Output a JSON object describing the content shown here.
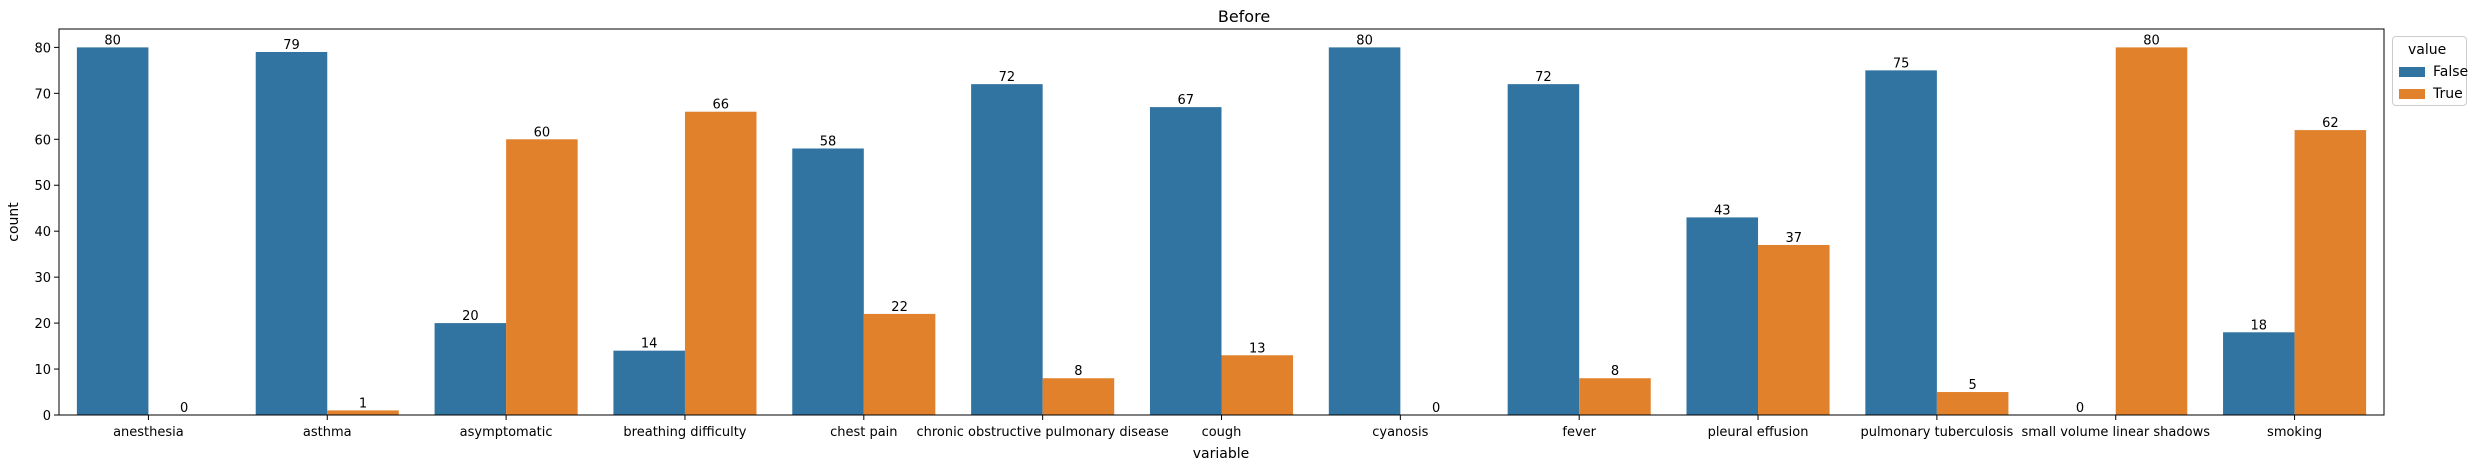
{
  "chart_data": {
    "type": "bar",
    "title": "Before",
    "xlabel": "variable",
    "ylabel": "count",
    "ylim": [
      0,
      84
    ],
    "yticks": [
      0,
      10,
      20,
      30,
      40,
      50,
      60,
      70,
      80
    ],
    "categories": [
      "anesthesia",
      "asthma",
      "asymptomatic",
      "breathing difficulty",
      "chest pain",
      "chronic obstructive pulmonary disease",
      "cough",
      "cyanosis",
      "fever",
      "pleural effusion",
      "pulmonary tuberculosis",
      "small volume linear shadows",
      "smoking"
    ],
    "series": [
      {
        "name": "False",
        "color": "#3274a1",
        "values": [
          80,
          79,
          20,
          14,
          58,
          72,
          67,
          80,
          72,
          43,
          75,
          0,
          18
        ]
      },
      {
        "name": "True",
        "color": "#e1812c",
        "values": [
          0,
          1,
          60,
          66,
          22,
          8,
          13,
          0,
          8,
          37,
          5,
          80,
          62
        ]
      }
    ],
    "legend": {
      "title": "value",
      "position": "outside-right"
    },
    "grid": false
  }
}
